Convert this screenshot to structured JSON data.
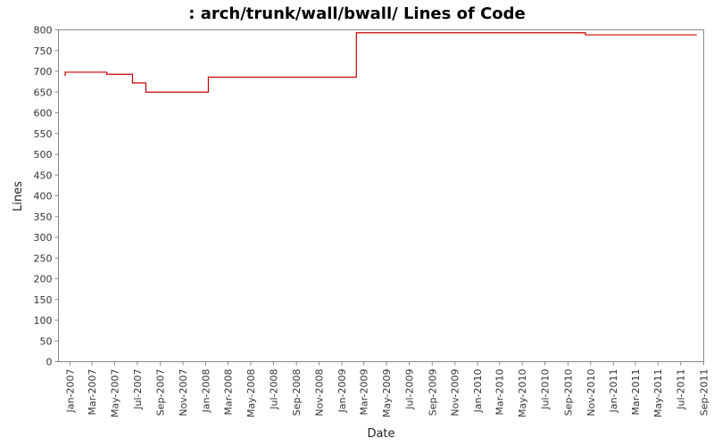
{
  "chart_data": {
    "type": "line",
    "title": ": arch/trunk/wall/bwall/ Lines of Code",
    "xlabel": "Date",
    "ylabel": "Lines",
    "ylim": [
      0,
      800
    ],
    "yticks": [
      0,
      50,
      100,
      150,
      200,
      250,
      300,
      350,
      400,
      450,
      500,
      550,
      600,
      650,
      700,
      750,
      800
    ],
    "xlim": [
      "2006-12-01",
      "2011-09-01"
    ],
    "xticks": [
      "Jan-2007",
      "Mar-2007",
      "May-2007",
      "Jul-2007",
      "Sep-2007",
      "Nov-2007",
      "Jan-2008",
      "Mar-2008",
      "May-2008",
      "Jul-2008",
      "Sep-2008",
      "Nov-2008",
      "Jan-2009",
      "Mar-2009",
      "May-2009",
      "Jul-2009",
      "Sep-2009",
      "Nov-2009",
      "Jan-2010",
      "Mar-2010",
      "May-2010",
      "Jul-2010",
      "Sep-2010",
      "Nov-2010",
      "Jan-2011",
      "Mar-2011",
      "May-2011",
      "Jul-2011",
      "Sep-2011"
    ],
    "xtick_dates": [
      "2007-01-01",
      "2007-03-01",
      "2007-05-01",
      "2007-07-01",
      "2007-09-01",
      "2007-11-01",
      "2008-01-01",
      "2008-03-01",
      "2008-05-01",
      "2008-07-01",
      "2008-09-01",
      "2008-11-01",
      "2009-01-01",
      "2009-03-01",
      "2009-05-01",
      "2009-07-01",
      "2009-09-01",
      "2009-11-01",
      "2010-01-01",
      "2010-03-01",
      "2010-05-01",
      "2010-07-01",
      "2010-09-01",
      "2010-11-01",
      "2011-01-01",
      "2011-03-01",
      "2011-05-01",
      "2011-07-01",
      "2011-09-01"
    ],
    "step": true,
    "grid": false,
    "series": [
      {
        "color": "#cc0000",
        "points": [
          {
            "x": "2006-12-19",
            "y": 690
          },
          {
            "x": "2006-12-19",
            "y": 698
          },
          {
            "x": "2007-04-10",
            "y": 693
          },
          {
            "x": "2007-06-18",
            "y": 672
          },
          {
            "x": "2007-07-24",
            "y": 650
          },
          {
            "x": "2008-01-08",
            "y": 686
          },
          {
            "x": "2009-02-09",
            "y": 793
          },
          {
            "x": "2010-10-18",
            "y": 788
          },
          {
            "x": "2011-08-12",
            "y": 788
          }
        ]
      }
    ]
  }
}
